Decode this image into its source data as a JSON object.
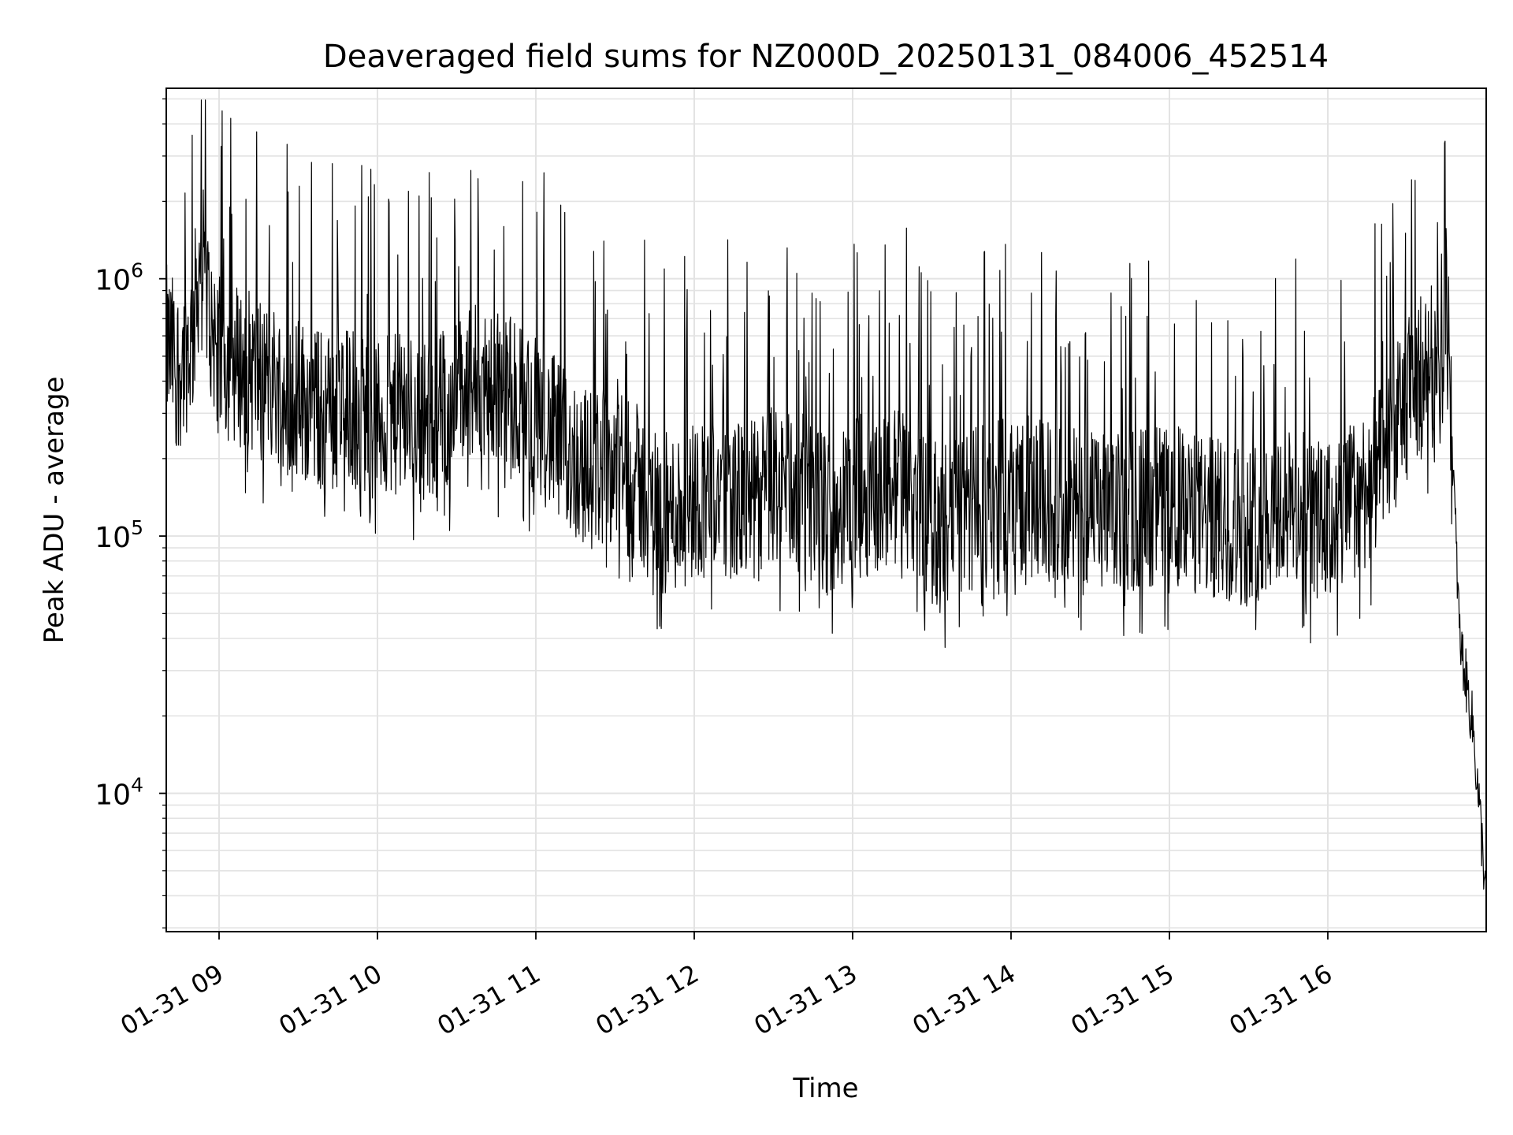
{
  "chart_data": {
    "type": "line",
    "title": "Deaveraged field sums for NZ000D_20250131_084006_452514",
    "xlabel": "Time",
    "ylabel": "Peak ADU - average",
    "y_scale": "log",
    "ylim": [
      2900,
      5500000
    ],
    "xlim": [
      "2025-01-31T08:40:00",
      "2025-01-31T17:00:00"
    ],
    "grid": "on (major and minor, light gray)",
    "line_color": "#000000",
    "x_tick_labels": [
      {
        "t": "2025-01-31T09:00:00",
        "label": "01-31 09"
      },
      {
        "t": "2025-01-31T10:00:00",
        "label": "01-31 10"
      },
      {
        "t": "2025-01-31T11:00:00",
        "label": "01-31 11"
      },
      {
        "t": "2025-01-31T12:00:00",
        "label": "01-31 12"
      },
      {
        "t": "2025-01-31T13:00:00",
        "label": "01-31 13"
      },
      {
        "t": "2025-01-31T14:00:00",
        "label": "01-31 14"
      },
      {
        "t": "2025-01-31T15:00:00",
        "label": "01-31 15"
      },
      {
        "t": "2025-01-31T16:00:00",
        "label": "01-31 16"
      }
    ],
    "y_tick_labels": [
      {
        "value": 10000,
        "base": "10",
        "exp": "4"
      },
      {
        "value": 100000,
        "base": "10",
        "exp": "5"
      },
      {
        "value": 1000000,
        "base": "10",
        "exp": "6"
      }
    ],
    "series": [
      {
        "x": [
          "2025-01-31T08:40:00",
          "2025-01-31T08:45:00",
          "2025-01-31T08:50:00",
          "2025-01-31T08:53:00",
          "2025-01-31T08:55:00",
          "2025-01-31T09:00:00",
          "2025-01-31T09:10:00",
          "2025-01-31T09:20:00",
          "2025-01-31T09:30:00",
          "2025-01-31T09:40:00",
          "2025-01-31T09:50:00",
          "2025-01-31T10:00:00",
          "2025-01-31T10:10:00",
          "2025-01-31T10:20:00",
          "2025-01-31T10:30:00",
          "2025-01-31T10:40:00",
          "2025-01-31T10:50:00",
          "2025-01-31T11:00:00",
          "2025-01-31T11:10:00",
          "2025-01-31T11:20:00",
          "2025-01-31T11:30:00",
          "2025-01-31T11:40:00",
          "2025-01-31T11:50:00",
          "2025-01-31T12:00:00",
          "2025-01-31T12:10:00",
          "2025-01-31T12:20:00",
          "2025-01-31T12:30:00",
          "2025-01-31T12:40:00",
          "2025-01-31T12:50:00",
          "2025-01-31T13:00:00",
          "2025-01-31T13:10:00",
          "2025-01-31T13:20:00",
          "2025-01-31T13:30:00",
          "2025-01-31T13:40:00",
          "2025-01-31T13:50:00",
          "2025-01-31T14:00:00",
          "2025-01-31T14:10:00",
          "2025-01-31T14:20:00",
          "2025-01-31T14:30:00",
          "2025-01-31T14:40:00",
          "2025-01-31T14:50:00",
          "2025-01-31T15:00:00",
          "2025-01-31T15:10:00",
          "2025-01-31T15:20:00",
          "2025-01-31T15:30:00",
          "2025-01-31T15:40:00",
          "2025-01-31T15:50:00",
          "2025-01-31T16:00:00",
          "2025-01-31T16:10:00",
          "2025-01-31T16:20:00",
          "2025-01-31T16:30:00",
          "2025-01-31T16:40:00",
          "2025-01-31T16:45:00",
          "2025-01-31T16:50:00",
          "2025-01-31T16:55:00",
          "2025-01-31T17:00:00"
        ],
        "y": [
          550000,
          450000,
          600000,
          1300000,
          900000,
          500000,
          450000,
          400000,
          350000,
          300000,
          320000,
          280000,
          300000,
          280000,
          350000,
          400000,
          350000,
          300000,
          220000,
          180000,
          200000,
          150000,
          120000,
          140000,
          150000,
          130000,
          160000,
          150000,
          120000,
          140000,
          150000,
          160000,
          110000,
          120000,
          130000,
          150000,
          140000,
          130000,
          125000,
          120000,
          130000,
          135000,
          120000,
          115000,
          110000,
          130000,
          125000,
          110000,
          140000,
          180000,
          350000,
          500000,
          800000,
          40000,
          18000,
          4000
        ]
      }
    ]
  }
}
